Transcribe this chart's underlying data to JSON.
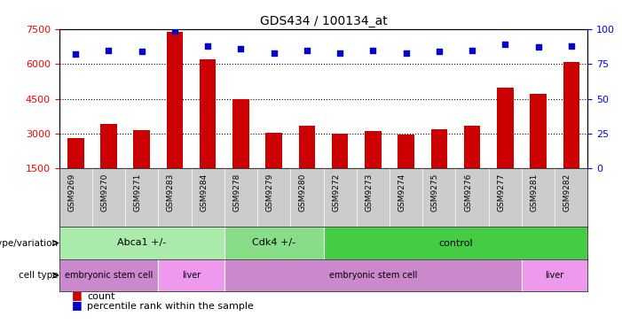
{
  "title": "GDS434 / 100134_at",
  "samples": [
    "GSM9269",
    "GSM9270",
    "GSM9271",
    "GSM9283",
    "GSM9284",
    "GSM9278",
    "GSM9279",
    "GSM9280",
    "GSM9272",
    "GSM9273",
    "GSM9274",
    "GSM9275",
    "GSM9276",
    "GSM9277",
    "GSM9281",
    "GSM9282"
  ],
  "counts": [
    2800,
    3400,
    3150,
    7400,
    6200,
    4500,
    3050,
    3350,
    2980,
    3100,
    2960,
    3200,
    3350,
    5000,
    4700,
    6100
  ],
  "percentiles": [
    82,
    85,
    84,
    99,
    88,
    86,
    83,
    85,
    83,
    85,
    83,
    84,
    85,
    89,
    87,
    88
  ],
  "ymin": 1500,
  "ymax": 7500,
  "yticks": [
    1500,
    3000,
    4500,
    6000,
    7500
  ],
  "right_yticks": [
    0,
    25,
    50,
    75,
    100
  ],
  "bar_color": "#cc0000",
  "dot_color": "#0000cc",
  "xtick_bg": "#cccccc",
  "genotype_groups": [
    {
      "label": "Abca1 +/-",
      "start": 0,
      "end": 5,
      "color": "#aaeaaa"
    },
    {
      "label": "Cdk4 +/-",
      "start": 5,
      "end": 8,
      "color": "#88dd88"
    },
    {
      "label": "control",
      "start": 8,
      "end": 16,
      "color": "#44cc44"
    }
  ],
  "celltype_groups": [
    {
      "label": "embryonic stem cell",
      "start": 0,
      "end": 3,
      "color": "#cc88cc"
    },
    {
      "label": "liver",
      "start": 3,
      "end": 5,
      "color": "#ee99ee"
    },
    {
      "label": "embryonic stem cell",
      "start": 5,
      "end": 14,
      "color": "#cc88cc"
    },
    {
      "label": "liver",
      "start": 14,
      "end": 16,
      "color": "#ee99ee"
    }
  ]
}
